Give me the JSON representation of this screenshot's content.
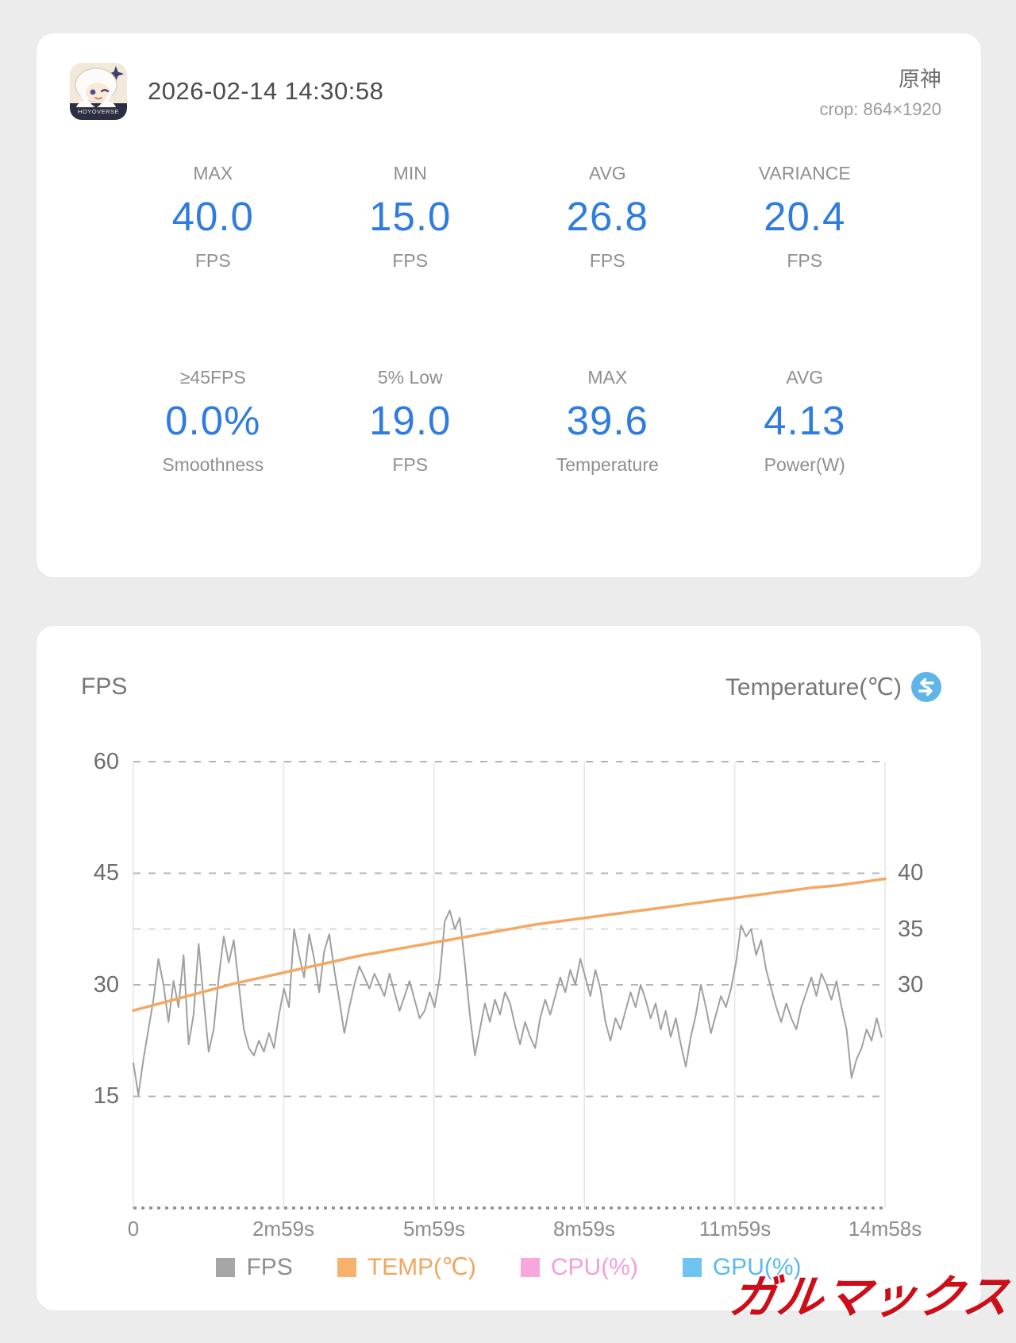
{
  "summary": {
    "timestamp": "2026-02-14 14:30:58",
    "app_name": "原神",
    "crop_info": "crop: 864×1920",
    "app_icon_banner": "HOYOVERSE",
    "stats": [
      {
        "label": "MAX",
        "value": "40.0",
        "unit": "FPS"
      },
      {
        "label": "MIN",
        "value": "15.0",
        "unit": "FPS"
      },
      {
        "label": "AVG",
        "value": "26.8",
        "unit": "FPS"
      },
      {
        "label": "VARIANCE",
        "value": "20.4",
        "unit": "FPS"
      },
      {
        "label": "≥45FPS",
        "value": "0.0%",
        "unit": "Smoothness"
      },
      {
        "label": "5% Low",
        "value": "19.0",
        "unit": "FPS"
      },
      {
        "label": "MAX",
        "value": "39.6",
        "unit": "Temperature"
      },
      {
        "label": "AVG",
        "value": "4.13",
        "unit": "Power(W)"
      }
    ],
    "accent_color": "#2f7ce0"
  },
  "chart": {
    "left_title": "FPS",
    "right_title": "Temperature(℃)",
    "legend": [
      {
        "label": "FPS",
        "swatch_style": "background:#a6a6a6",
        "label_style": "color:#8f8f8f"
      },
      {
        "label": "TEMP(℃)",
        "swatch_style": "background:#f6b16c",
        "label_style": "color:#efa65e"
      },
      {
        "label": "CPU(%)",
        "swatch_style": "background:#f8a7dc",
        "label_style": "color:#f49ed8"
      },
      {
        "label": "GPU(%)",
        "swatch_style": "background:#6fc3f1",
        "label_style": "color:#5cb8ee"
      }
    ]
  },
  "chart_data": {
    "type": "line",
    "x_unit": "seconds",
    "x_range": [
      0,
      898
    ],
    "x_tick_labels": [
      "0",
      "2m59s",
      "5m59s",
      "8m59s",
      "11m59s",
      "14m58s"
    ],
    "left_axis": {
      "title": "FPS",
      "range": [
        0,
        60
      ],
      "ticks": [
        60,
        45,
        30,
        15
      ]
    },
    "right_axis": {
      "title": "Temperature(℃)",
      "range": [
        10,
        50
      ],
      "ticks": [
        40,
        35,
        30
      ]
    },
    "grid": {
      "horizontal": "dashed",
      "vertical": "solid-light"
    },
    "legend_position": "bottom-center",
    "series": [
      {
        "name": "FPS",
        "axis": "left",
        "color": "#a0a0a0",
        "width": 2,
        "x_start": 0,
        "x_step": 6,
        "values": [
          19.5,
          15.2,
          20,
          24,
          28,
          33.5,
          30,
          25,
          30.5,
          27,
          34,
          22,
          26,
          35.5,
          28,
          21,
          24,
          31,
          36.5,
          33,
          36,
          30,
          24,
          21.5,
          20.5,
          22.5,
          21,
          23.5,
          21.5,
          26,
          29.5,
          27,
          37.5,
          34,
          31,
          36.8,
          33.5,
          29,
          34.5,
          36.8,
          32,
          28,
          23.5,
          27,
          30,
          32.5,
          31,
          29.5,
          31.5,
          30,
          28.5,
          31.5,
          29,
          26.5,
          28.5,
          30.5,
          28,
          25.5,
          26.5,
          29,
          27,
          31,
          38.5,
          40,
          37.5,
          39,
          33,
          26,
          20.5,
          24,
          27.5,
          25,
          28,
          26,
          29,
          27.5,
          24.5,
          22,
          25,
          23,
          21.5,
          25.5,
          28,
          26,
          28.5,
          31,
          29,
          32,
          30,
          33.5,
          31,
          28.5,
          32,
          29.5,
          25,
          22.5,
          25.5,
          24,
          26.5,
          29,
          27,
          30,
          28,
          25.5,
          27.5,
          24,
          26.5,
          23,
          25.5,
          22,
          19,
          23,
          26,
          30,
          27,
          23.5,
          26,
          28.5,
          27,
          29.5,
          33,
          38,
          36.5,
          37.5,
          34,
          36,
          32,
          29.5,
          27,
          25,
          27.5,
          25.5,
          24,
          27,
          29,
          31,
          28.5,
          31.5,
          30,
          28,
          30.5,
          27,
          24,
          17.5,
          20,
          21.5,
          24,
          22.5,
          25.5,
          23
        ]
      },
      {
        "name": "TEMP(℃)",
        "axis": "right",
        "color": "#f3a963",
        "width": 3.5,
        "x": [
          0,
          30,
          60,
          90,
          120,
          150,
          180,
          210,
          240,
          270,
          300,
          330,
          360,
          390,
          420,
          450,
          480,
          510,
          540,
          570,
          600,
          630,
          660,
          690,
          720,
          750,
          780,
          810,
          840,
          870,
          898
        ],
        "values": [
          27.7,
          28.3,
          28.9,
          29.5,
          30.1,
          30.6,
          31.1,
          31.6,
          32.1,
          32.6,
          33.0,
          33.4,
          33.8,
          34.2,
          34.6,
          35.0,
          35.4,
          35.7,
          36.0,
          36.3,
          36.6,
          36.9,
          37.2,
          37.5,
          37.8,
          38.1,
          38.4,
          38.7,
          38.9,
          39.2,
          39.5
        ]
      },
      {
        "name": "CPU(%)",
        "axis": "right",
        "color": "#f8a7dc",
        "width": 2,
        "x": [],
        "values": []
      },
      {
        "name": "GPU(%)",
        "axis": "right",
        "color": "#6fc3f1",
        "width": 2,
        "x": [],
        "values": []
      }
    ]
  },
  "watermark": "ガルマックス"
}
